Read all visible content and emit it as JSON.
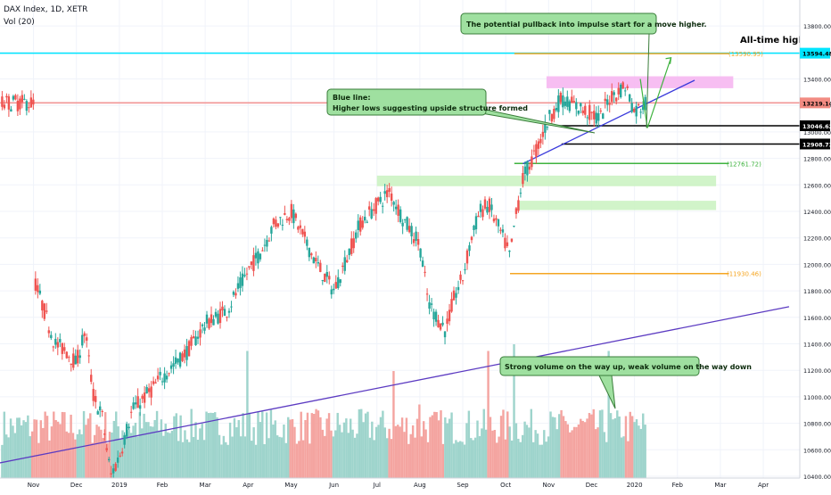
{
  "header": {
    "symbol": "DAX Index, 1D, XETR",
    "volume_label": "Vol (20)"
  },
  "chart_data": {
    "type": "candlestick",
    "title": "DAX Index, 1D, XETR",
    "price_axis": {
      "min": 10400,
      "max": 13900,
      "ticks": [
        10400,
        10600,
        10800,
        11000,
        11200,
        11400,
        11600,
        11800,
        12000,
        12200,
        12400,
        12600,
        12800,
        13000,
        13200,
        13400,
        13600,
        13800
      ],
      "tick_labels": [
        "10400.00",
        "10600.00",
        "10800.00",
        "11000.00",
        "11200.00",
        "11400.00",
        "11600.00",
        "11800.00",
        "12000.00",
        "12200.00",
        "12400.00",
        "12600.00",
        "12800.00",
        "13000.00",
        "13200.00",
        "13400.00",
        "13600.00",
        "13800.00"
      ]
    },
    "time_axis": {
      "labels": [
        "Nov",
        "Dec",
        "2019",
        "Feb",
        "Mar",
        "Apr",
        "May",
        "Jun",
        "Jul",
        "Aug",
        "Sep",
        "Oct",
        "Nov",
        "Dec",
        "2020",
        "Feb",
        "Mar",
        "Apr"
      ],
      "months_index": [
        0,
        1,
        2,
        3,
        4,
        5,
        6,
        7,
        8,
        9,
        10,
        11,
        12,
        13,
        14,
        15,
        16,
        17
      ],
      "last_data_month_index": 14.25
    },
    "price_path": [
      [
        0,
        11900
      ],
      [
        0.25,
        11650
      ],
      [
        0.5,
        11400
      ],
      [
        0.75,
        11350
      ],
      [
        1,
        11250
      ],
      [
        1.2,
        11500
      ],
      [
        1.4,
        11000
      ],
      [
        1.6,
        10850
      ],
      [
        1.8,
        10400
      ],
      [
        2,
        10550
      ],
      [
        2.3,
        10900
      ],
      [
        2.6,
        11000
      ],
      [
        3,
        11150
      ],
      [
        3.3,
        11250
      ],
      [
        3.6,
        11350
      ],
      [
        4,
        11550
      ],
      [
        4.5,
        11650
      ],
      [
        5,
        11950
      ],
      [
        5.3,
        12100
      ],
      [
        5.6,
        12300
      ],
      [
        6,
        12400
      ],
      [
        6.3,
        12200
      ],
      [
        6.6,
        12000
      ],
      [
        7,
        11800
      ],
      [
        7.3,
        12050
      ],
      [
        7.6,
        12300
      ],
      [
        8,
        12450
      ],
      [
        8.3,
        12550
      ],
      [
        8.6,
        12350
      ],
      [
        9,
        12150
      ],
      [
        9.2,
        11700
      ],
      [
        9.4,
        11600
      ],
      [
        9.6,
        11500
      ],
      [
        9.8,
        11750
      ],
      [
        10,
        11900
      ],
      [
        10.2,
        12200
      ],
      [
        10.4,
        12400
      ],
      [
        10.6,
        12450
      ],
      [
        10.8,
        12300
      ],
      [
        11,
        12150
      ],
      [
        11.1,
        12050
      ],
      [
        11.2,
        12300
      ],
      [
        11.4,
        12650
      ],
      [
        11.7,
        12850
      ],
      [
        12,
        13100
      ],
      [
        12.3,
        13250
      ],
      [
        12.6,
        13200
      ],
      [
        12.9,
        13150
      ],
      [
        13.2,
        13100
      ],
      [
        13.4,
        13250
      ],
      [
        13.6,
        13300
      ],
      [
        13.8,
        13350
      ],
      [
        14,
        13150
      ],
      [
        14.25,
        13219
      ]
    ],
    "volume": {
      "count": 300,
      "average_height": 0.45,
      "spikes": [
        [
          10.6,
          0.95
        ],
        [
          11.2,
          1.0
        ],
        [
          13.4,
          0.95
        ],
        [
          8.4,
          0.8
        ],
        [
          9,
          0.55
        ],
        [
          5,
          0.95
        ]
      ]
    },
    "horizontal_lines": [
      {
        "name": "all-time-high-line",
        "price": 13594.48,
        "color": "#00e5ff",
        "full_width": true,
        "label": "13594.48"
      },
      {
        "name": "current-price-line",
        "price": 13219.14,
        "color": "#f29696",
        "full_width": true,
        "label": "13219.14"
      },
      {
        "name": "level-13046",
        "price": 13046.62,
        "color": "#000000",
        "start_month": 12.2,
        "label": "13046.62"
      },
      {
        "name": "level-12908",
        "price": 12908.73,
        "color": "#000000",
        "start_month": 12.3,
        "label": "12908.73"
      },
      {
        "name": "level-13590",
        "price": 13590.95,
        "color": "#f5a623",
        "start_month": 11.2,
        "end_month": 16.2,
        "label": "(13590.95)"
      },
      {
        "name": "level-12761",
        "price": 12761.72,
        "color": "#3fb33f",
        "start_month": 11.2,
        "end_month": 16.2,
        "label": "(12761.72)"
      },
      {
        "name": "level-11930",
        "price": 11930.46,
        "color": "#f5a623",
        "start_month": 11.1,
        "end_month": 16.2,
        "label": "(11930.46)"
      }
    ],
    "zones": [
      {
        "name": "resistance-zone",
        "color": "#f6b3f0",
        "from_month": 11.95,
        "to_month": 16.3,
        "low": 13330,
        "high": 13420
      },
      {
        "name": "support-zone-upper",
        "color": "#c9f2c0",
        "from_month": 8.0,
        "to_month": 15.9,
        "low": 12590,
        "high": 12670
      },
      {
        "name": "support-zone-lower",
        "color": "#c9f2c0",
        "from_month": 11.3,
        "to_month": 15.9,
        "low": 12410,
        "high": 12480
      }
    ],
    "trendlines": [
      {
        "name": "blue-trendline",
        "color": "#3a3adb",
        "from": [
          11.4,
          12760
        ],
        "to": [
          15.4,
          13390
        ]
      },
      {
        "name": "purple-long-trendline",
        "color": "#5c3bc2",
        "from": [
          -0.8,
          10500
        ],
        "to": [
          17.6,
          11680
        ]
      }
    ],
    "annotations": {
      "pullback": "The potential pullback into impulse start for a move higher.",
      "ath": "All-time high",
      "blue_line_title": "Blue line:",
      "blue_line_body": "Higher lows suggesting upside structure formed",
      "volume_note": "Strong volume on the way up, weak volume on the way down"
    },
    "colors": {
      "up": "#26a69a",
      "down": "#ef5350",
      "vol_up": "#9ed4cc",
      "vol_down": "#f4a4a0",
      "note_fill": "#9fe0a0",
      "note_border": "#3a7d3a"
    }
  }
}
